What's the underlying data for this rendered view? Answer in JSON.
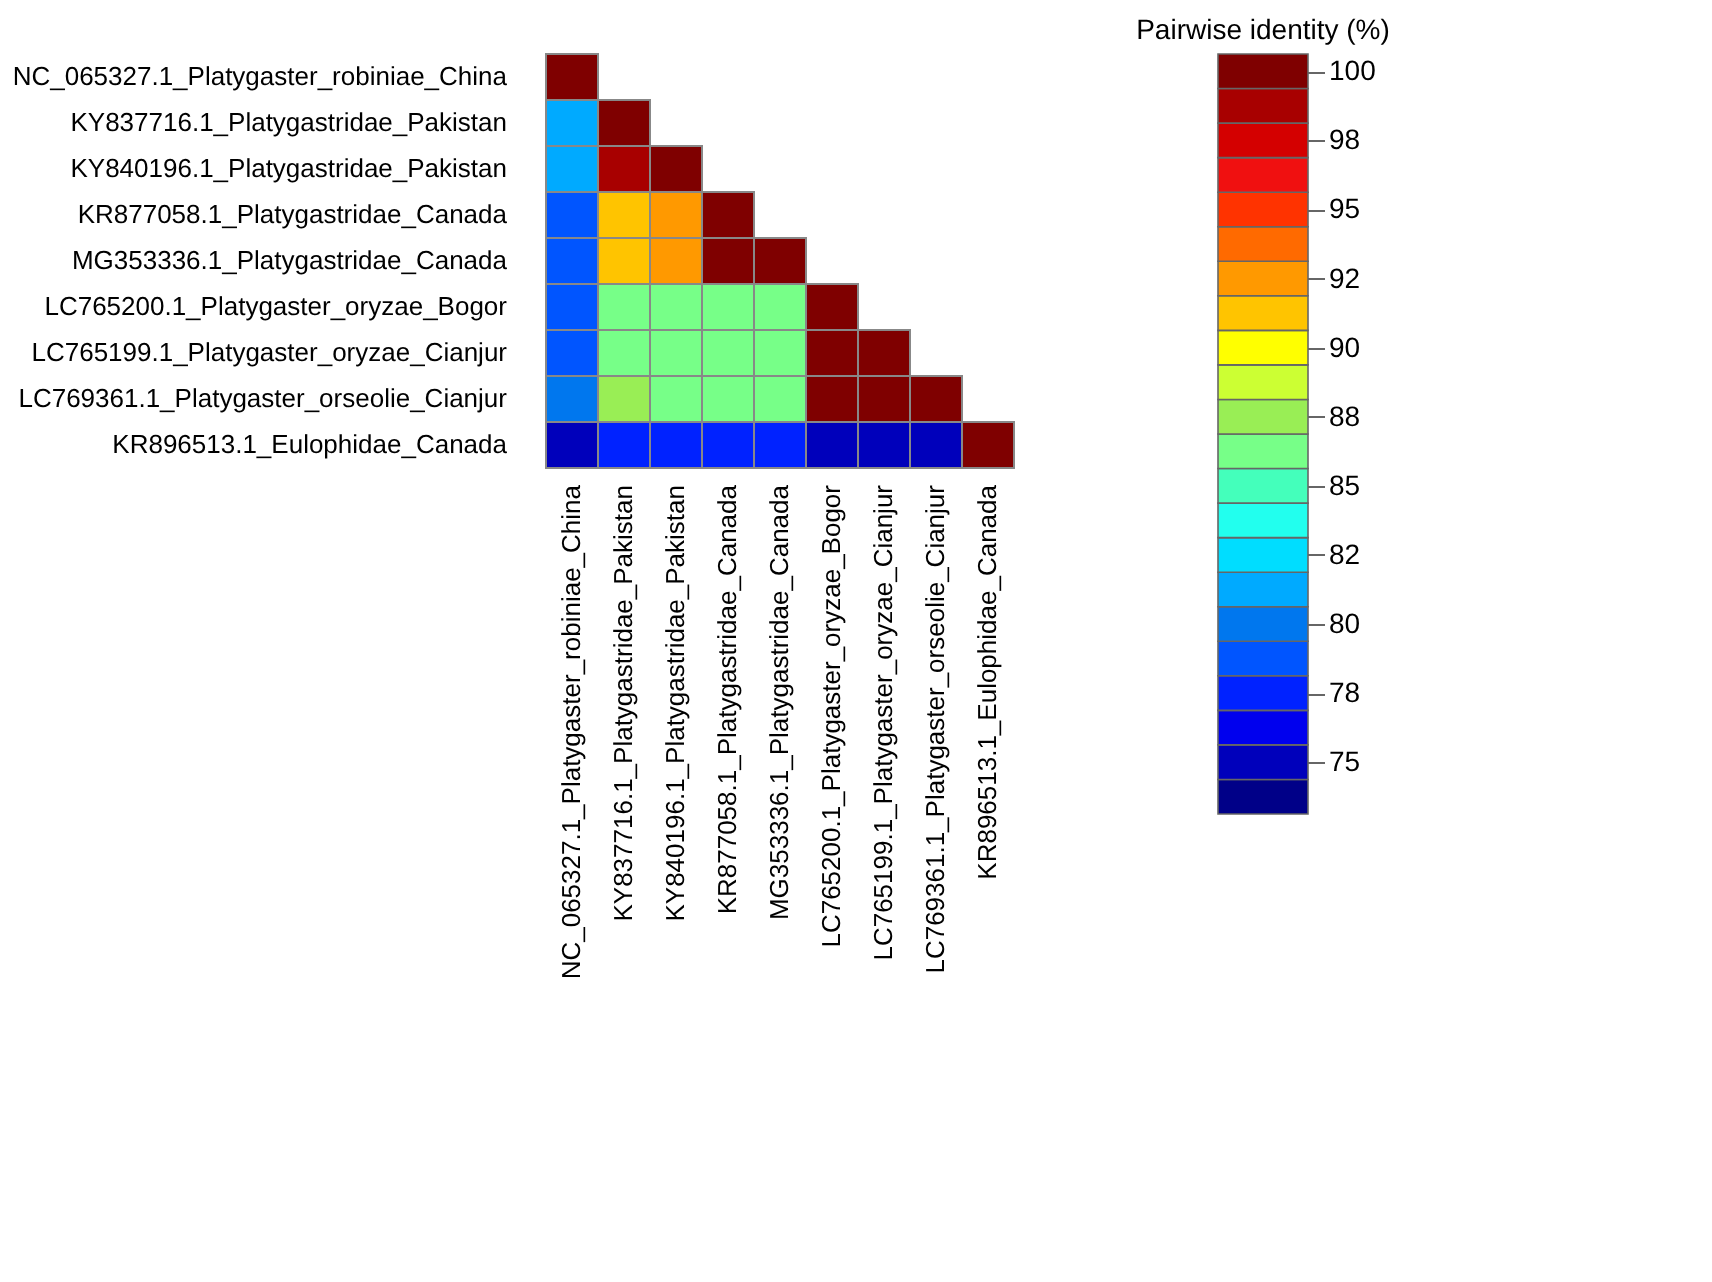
{
  "chart_data": {
    "type": "heatmap",
    "legend_title": "Pairwise identity (%)",
    "categories": [
      "NC_065327.1_Platygaster_robiniae_China",
      "KY837716.1_Platygastridae_Pakistan",
      "KY840196.1_Platygastridae_Pakistan",
      "KR877058.1_Platygastridae_Canada",
      "MG353336.1_Platygastridae_Canada",
      "LC765200.1_Platygaster_oryzae_Bogor",
      "LC765199.1_Platygaster_oryzae_Cianjur",
      "LC769361.1_Platygaster_orseolie_Cianjur",
      "KR896513.1_Eulophidae_Canada"
    ],
    "y_categories": [
      "NC_065327.1_Platygaster_robiniae_China",
      "KY837716.1_Platygastridae_Pakistan",
      "KY840196.1_Platygastridae_Pakistan",
      "KR877058.1_Platygastridae_Canada",
      "MG353336.1_Platygastridae_Canada",
      "LC765200.1_Platygaster_oryzae_Bogor",
      "LC765199.1_Platygaster_oryzae_Cianjur",
      "LC769361.1_Platygaster_orseolie_Cianjur",
      "KR896513.1_Eulophidae_Canada"
    ],
    "cells": [
      [
        100,
        null,
        null,
        null,
        null,
        null,
        null,
        null,
        null
      ],
      [
        81,
        100,
        null,
        null,
        null,
        null,
        null,
        null,
        null
      ],
      [
        81,
        98.75,
        100,
        null,
        null,
        null,
        null,
        null,
        null
      ],
      [
        79,
        91,
        92.5,
        100,
        null,
        null,
        null,
        null,
        null
      ],
      [
        79,
        91,
        92.5,
        100,
        100,
        null,
        null,
        null,
        null
      ],
      [
        79,
        86.25,
        86.25,
        86.25,
        86.25,
        100,
        null,
        null,
        null
      ],
      [
        79,
        86.25,
        86.25,
        86.25,
        86.25,
        100,
        100,
        null,
        null
      ],
      [
        80,
        87.5,
        86.25,
        86.25,
        86.25,
        100,
        100,
        100,
        null
      ],
      [
        75,
        77.5,
        77.5,
        77.5,
        77.5,
        75,
        75,
        75,
        100
      ]
    ],
    "clim": [
      73.125,
      100.625
    ],
    "cticks": [
      100,
      {
        "value": 97.5,
        "label": "98"
      },
      95,
      {
        "value": 92.5,
        "label": "92"
      },
      90,
      {
        "value": 87.5,
        "label": "88"
      },
      85,
      {
        "value": 82.5,
        "label": "82"
      },
      80,
      {
        "value": 77.5,
        "label": "78"
      },
      75
    ]
  }
}
